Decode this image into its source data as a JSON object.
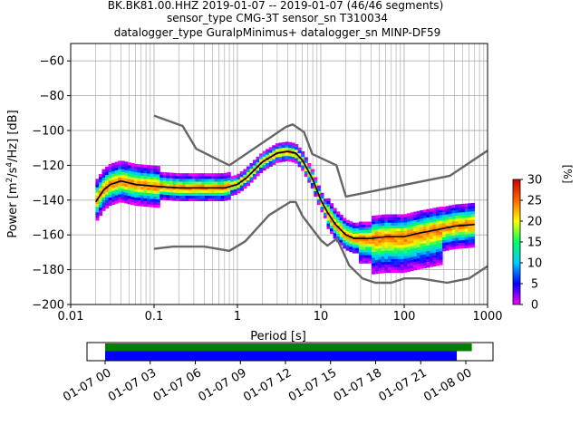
{
  "title": {
    "line1": "BK.BK81.00.HHZ   2019-01-07 -- 2019-01-07  (46/46 segments)",
    "line2": "sensor_type CMG-3T sensor_sn T310034",
    "line3": "datalogger_type GuralpMinimus+ datalogger_sn MINP-DF59"
  },
  "chart_data": [
    {
      "type": "heatmap",
      "subtype": "probabilistic-power-spectral-density",
      "xlabel": "Period [s]",
      "ylabel": "Power [m²/s⁴/Hz] [dB]",
      "xscale": "log",
      "xlim": [
        0.01,
        1000
      ],
      "ylim": [
        -200,
        -50
      ],
      "xticks": [
        0.01,
        0.1,
        1,
        10,
        100,
        1000
      ],
      "xtick_labels": [
        "0.01",
        "0.1",
        "1",
        "10",
        "100",
        "1000"
      ],
      "yticks": [
        -200,
        -180,
        -160,
        -140,
        -120,
        -100,
        -80,
        -60
      ],
      "ytick_labels": [
        "−200",
        "−180",
        "−160",
        "−140",
        "−120",
        "−100",
        "−80",
        "−60"
      ],
      "grid": true,
      "colorbar": {
        "label": "[%]",
        "range": [
          0,
          30
        ],
        "ticks": [
          0,
          5,
          10,
          15,
          20,
          25,
          30
        ],
        "tick_labels": [
          "0",
          "5",
          "10",
          "15",
          "20",
          "25",
          "30"
        ],
        "colormap": "pqlx",
        "colors": [
          "#ff00ff",
          "#0000ff",
          "#00ccff",
          "#00ff66",
          "#ffff00",
          "#ff6600",
          "#cc0000"
        ]
      },
      "series": [
        {
          "role": "mode",
          "color": "#000000",
          "x": [
            0.02,
            0.025,
            0.03,
            0.04,
            0.06,
            0.1,
            0.2,
            0.4,
            0.7,
            1,
            1.3,
            2,
            3,
            4,
            5,
            6,
            8,
            10,
            12,
            15,
            20,
            25,
            30,
            40,
            60,
            100,
            150,
            250,
            400,
            700
          ],
          "y": [
            -141,
            -134,
            -131,
            -129,
            -131,
            -132,
            -133,
            -133,
            -133,
            -131,
            -127,
            -118,
            -113,
            -112,
            -113,
            -117,
            -128,
            -140,
            -147,
            -154,
            -160,
            -162,
            -162,
            -162,
            -161,
            -161,
            -159,
            -157,
            -155,
            -154
          ]
        },
        {
          "role": "noise-model-high",
          "color": "#666666",
          "x": [
            0.1,
            0.22,
            0.32,
            0.8,
            3.8,
            4.6,
            6.3,
            7.9,
            15.4,
            20,
            354.8,
            1000
          ],
          "y": [
            -91.5,
            -97.4,
            -110.5,
            -120,
            -98,
            -96.5,
            -101,
            -113.5,
            -120,
            -138,
            -126,
            -111.5
          ]
        },
        {
          "role": "noise-model-low",
          "color": "#666666",
          "x": [
            0.1,
            0.17,
            0.4,
            0.8,
            1.24,
            2.4,
            4.3,
            5,
            6,
            10,
            12,
            15.6,
            21.9,
            31.6,
            45,
            70,
            101,
            154,
            328,
            600,
            1000
          ],
          "y": [
            -168,
            -166.7,
            -166.7,
            -169.2,
            -163.7,
            -148.6,
            -141.1,
            -141.1,
            -149,
            -163,
            -166.2,
            -162.1,
            -177.5,
            -185,
            -187.5,
            -187.5,
            -185,
            -185,
            -187.5,
            -185,
            -178
          ]
        }
      ]
    },
    {
      "type": "timeline",
      "role": "data-coverage",
      "xlim": [
        "2019-01-06 20:45",
        "2019-01-08 01:30"
      ],
      "tick_labels": [
        "01-07 00",
        "01-07 03",
        "01-07 06",
        "01-07 09",
        "01-07 12",
        "01-07 15",
        "01-07 18",
        "01-07 21",
        "01-08 00"
      ],
      "ticks_hours": [
        0,
        3,
        6,
        9,
        12,
        15,
        18,
        21,
        24
      ],
      "bars": [
        {
          "role": "data-available",
          "color": "#008000",
          "start_hour": 0,
          "end_hour": 24.4
        },
        {
          "role": "data-used",
          "color": "#0000ff",
          "start_hour": 0,
          "end_hour": 23.4
        }
      ]
    }
  ]
}
